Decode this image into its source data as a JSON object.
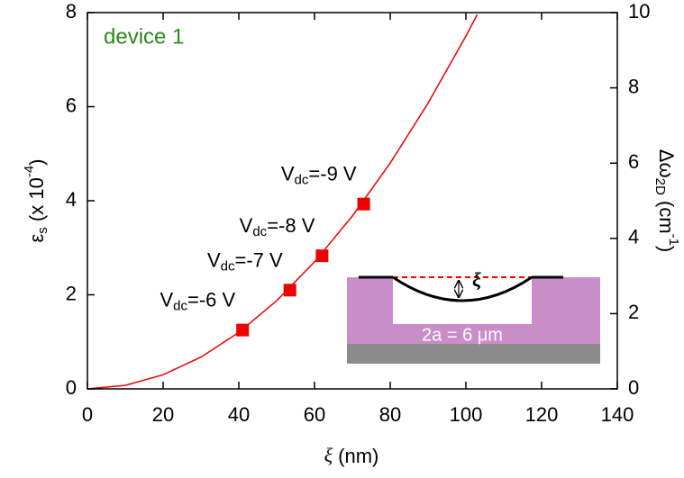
{
  "chart_data": {
    "type": "scatter",
    "annotation": "device 1",
    "xlabel": {
      "symbol": "ξ",
      "rest": " (nm)"
    },
    "ylabel": [
      "ε",
      "s",
      " (x 10",
      "-4",
      ")"
    ],
    "y2label": [
      "Δω",
      "2D",
      " (cm",
      "-1",
      ")"
    ],
    "xlim": [
      0,
      140
    ],
    "xticks": [
      0,
      20,
      40,
      60,
      80,
      100,
      120,
      140
    ],
    "ylim": [
      0,
      8
    ],
    "yticks": [
      0,
      2,
      4,
      6,
      8
    ],
    "y2lim": [
      0,
      10
    ],
    "y2ticks": [
      0,
      2,
      4,
      6,
      8,
      10
    ],
    "series": [
      {
        "color": "#ee0000",
        "marker": "square",
        "x": [
          41,
          53.5,
          62,
          73
        ],
        "values": [
          1.25,
          2.1,
          2.83,
          3.93
        ],
        "labels": [
          [
            "V",
            "dc",
            "=-6 V"
          ],
          [
            "V",
            "dc",
            "=-7 V"
          ],
          [
            "V",
            "dc",
            "=-8 V"
          ],
          [
            "V",
            "dc",
            "=-9 V"
          ]
        ]
      },
      {
        "color": "#ee0000",
        "marker": "line",
        "x": [
          0,
          10,
          20,
          30,
          40,
          50,
          60,
          70,
          80,
          90,
          100,
          103
        ],
        "values": [
          0,
          0.075,
          0.3,
          0.675,
          1.2,
          1.875,
          2.7,
          3.675,
          4.8,
          6.075,
          7.5,
          7.96
        ]
      }
    ],
    "inset": {
      "depth": "ξ",
      "width": "2a = 6 μm"
    }
  }
}
